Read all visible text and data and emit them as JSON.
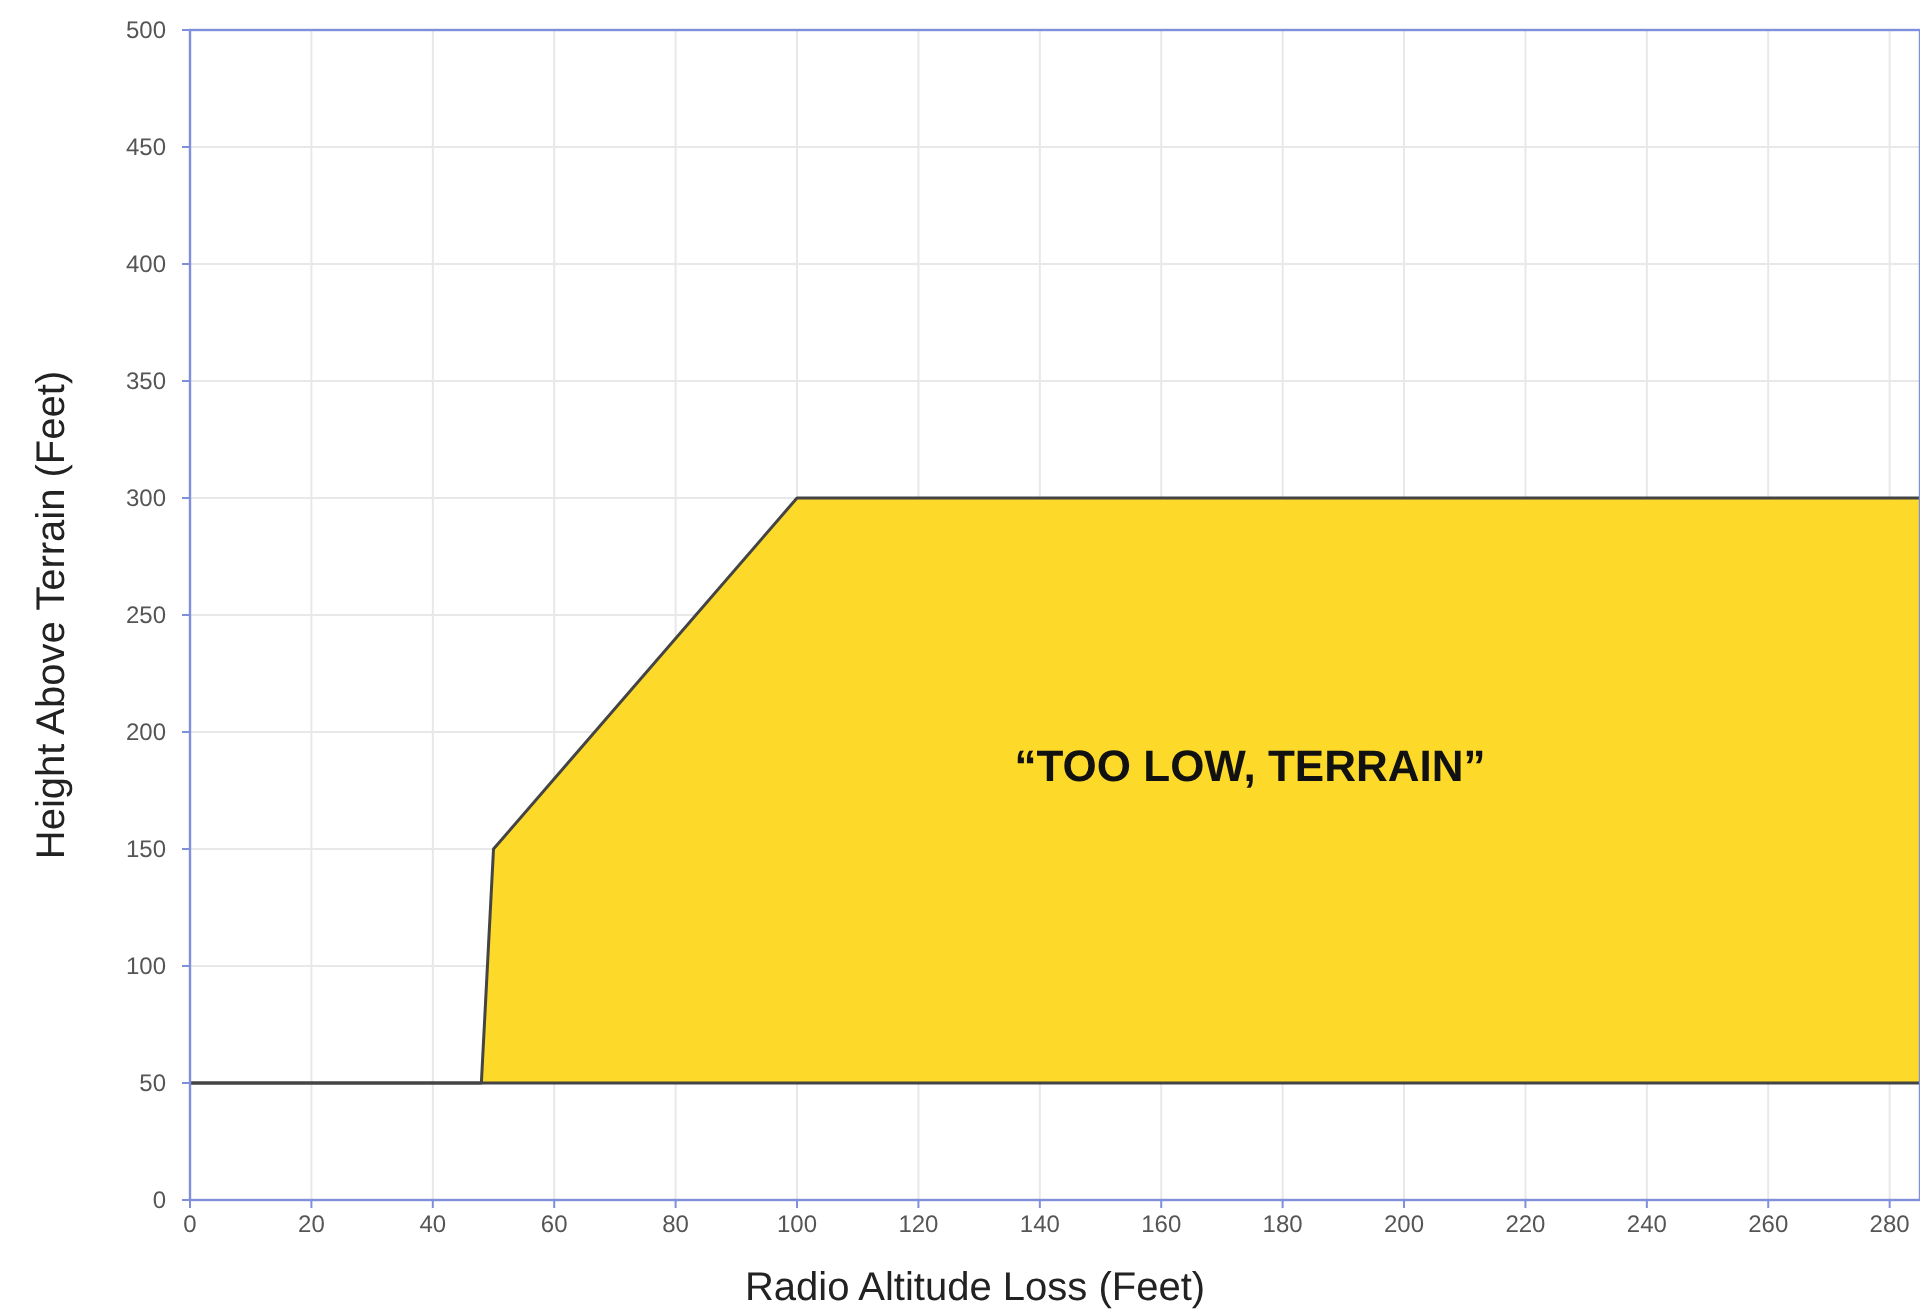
{
  "chart_data": {
    "type": "area",
    "xlabel": "Radio Altitude Loss (Feet)",
    "ylabel": "Height Above Terrain (Feet)",
    "x": [
      0,
      48,
      50,
      100,
      285
    ],
    "series": [
      {
        "color": "#fdd92a",
        "values": [
          50,
          50,
          150,
          300,
          300
        ]
      }
    ],
    "ref_lines": [
      {
        "axis": "y",
        "value": 50,
        "color": "#444444"
      }
    ],
    "xlim": [
      0,
      285
    ],
    "xticks": [
      0,
      20,
      40,
      60,
      80,
      100,
      120,
      140,
      160,
      180,
      200,
      220,
      240,
      260,
      280
    ],
    "ylim": [
      0,
      500
    ],
    "yticks": [
      0,
      50,
      100,
      150,
      200,
      250,
      300,
      350,
      400,
      450,
      500
    ],
    "grid": true,
    "annotations": [
      "“TOO LOW, TERRAIN”"
    ]
  }
}
